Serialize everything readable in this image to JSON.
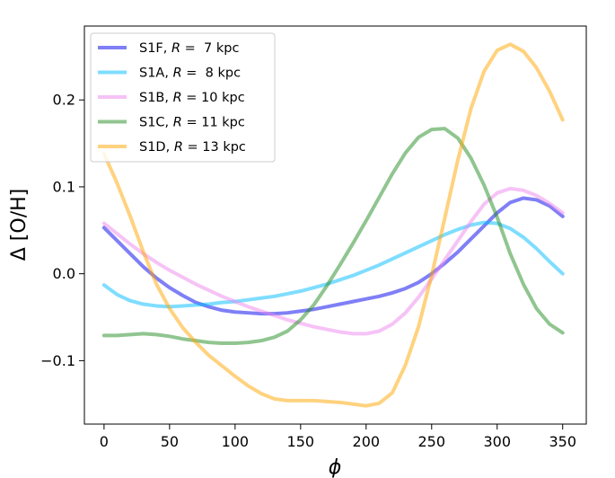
{
  "chart_data": {
    "type": "line",
    "title": "",
    "xlabel": "ϕ",
    "ylabel": "Δ [O/H]",
    "xlim": [
      -15,
      368
    ],
    "ylim": [
      -0.173,
      0.285
    ],
    "xticks": [
      0,
      50,
      100,
      150,
      200,
      250,
      300,
      350
    ],
    "xtick_labels": [
      "0",
      "50",
      "100",
      "150",
      "200",
      "250",
      "300",
      "350"
    ],
    "yticks": [
      -0.1,
      0.0,
      0.1,
      0.2
    ],
    "ytick_labels": [
      "−0.1",
      "0.0",
      "0.1",
      "0.2"
    ],
    "grid": false,
    "legend_position": "upper-left",
    "x": [
      0,
      10,
      20,
      30,
      40,
      50,
      60,
      70,
      80,
      90,
      100,
      110,
      120,
      130,
      140,
      150,
      160,
      170,
      180,
      190,
      200,
      210,
      220,
      230,
      240,
      250,
      260,
      270,
      280,
      290,
      300,
      310,
      320,
      330,
      340,
      350
    ],
    "series": [
      {
        "name": "S1F",
        "legend_prefix": "S1F, ",
        "legend_var": "R",
        "legend_value": " =  7 kpc",
        "color": "#0000ee",
        "opacity": 0.5,
        "values": [
          0.053,
          0.038,
          0.023,
          0.008,
          -0.005,
          -0.016,
          -0.025,
          -0.033,
          -0.038,
          -0.042,
          -0.044,
          -0.045,
          -0.046,
          -0.046,
          -0.045,
          -0.043,
          -0.041,
          -0.038,
          -0.035,
          -0.032,
          -0.029,
          -0.026,
          -0.022,
          -0.017,
          -0.01,
          0.0,
          0.012,
          0.025,
          0.04,
          0.055,
          0.07,
          0.082,
          0.087,
          0.085,
          0.078,
          0.066
        ]
      },
      {
        "name": "S1A",
        "legend_prefix": "S1A, ",
        "legend_var": "R",
        "legend_value": " =  8 kpc",
        "color": "#00bbff",
        "opacity": 0.5,
        "values": [
          -0.013,
          -0.024,
          -0.031,
          -0.035,
          -0.037,
          -0.038,
          -0.037,
          -0.036,
          -0.035,
          -0.033,
          -0.032,
          -0.03,
          -0.028,
          -0.026,
          -0.023,
          -0.02,
          -0.016,
          -0.012,
          -0.007,
          -0.002,
          0.004,
          0.01,
          0.017,
          0.024,
          0.031,
          0.038,
          0.045,
          0.051,
          0.056,
          0.059,
          0.058,
          0.052,
          0.042,
          0.029,
          0.014,
          0.0
        ]
      },
      {
        "name": "S1B",
        "legend_prefix": "S1B, ",
        "legend_var": "R",
        "legend_value": " = 10 kpc",
        "color": "#ee88ee",
        "opacity": 0.5,
        "values": [
          0.058,
          0.046,
          0.034,
          0.023,
          0.013,
          0.004,
          -0.004,
          -0.012,
          -0.019,
          -0.026,
          -0.032,
          -0.038,
          -0.043,
          -0.048,
          -0.053,
          -0.057,
          -0.061,
          -0.064,
          -0.067,
          -0.069,
          -0.069,
          -0.066,
          -0.058,
          -0.045,
          -0.027,
          -0.006,
          0.016,
          0.038,
          0.06,
          0.08,
          0.093,
          0.098,
          0.096,
          0.09,
          0.081,
          0.07
        ]
      },
      {
        "name": "S1C",
        "legend_prefix": "S1C, ",
        "legend_var": "R",
        "legend_value": " = 11 kpc",
        "color": "#228b22",
        "opacity": 0.5,
        "values": [
          -0.071,
          -0.071,
          -0.07,
          -0.069,
          -0.07,
          -0.072,
          -0.075,
          -0.077,
          -0.079,
          -0.08,
          -0.08,
          -0.079,
          -0.077,
          -0.073,
          -0.066,
          -0.053,
          -0.036,
          -0.014,
          0.01,
          0.035,
          0.061,
          0.088,
          0.115,
          0.139,
          0.157,
          0.166,
          0.167,
          0.156,
          0.133,
          0.102,
          0.065,
          0.023,
          -0.012,
          -0.04,
          -0.058,
          -0.068
        ]
      },
      {
        "name": "S1D",
        "legend_prefix": "S1D, ",
        "legend_var": "R",
        "legend_value": " = 13 kpc",
        "color": "#ffa500",
        "opacity": 0.5,
        "values": [
          0.138,
          0.104,
          0.066,
          0.025,
          -0.012,
          -0.04,
          -0.062,
          -0.079,
          -0.094,
          -0.106,
          -0.118,
          -0.129,
          -0.138,
          -0.144,
          -0.146,
          -0.146,
          -0.146,
          -0.147,
          -0.148,
          -0.15,
          -0.152,
          -0.149,
          -0.137,
          -0.105,
          -0.061,
          -0.002,
          0.064,
          0.131,
          0.19,
          0.233,
          0.257,
          0.264,
          0.256,
          0.237,
          0.21,
          0.177
        ]
      }
    ]
  }
}
